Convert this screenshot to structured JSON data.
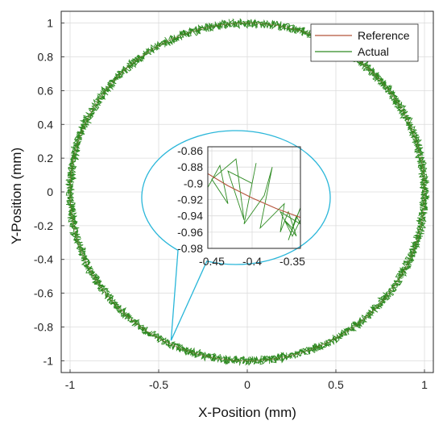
{
  "chart_data": [
    {
      "type": "line",
      "xlabel": "X-Position (mm)",
      "ylabel": "Y-Position (mm)",
      "xlim": [
        -1.05,
        1.05
      ],
      "ylim": [
        -1.07,
        1.07
      ],
      "xticks": [
        -1,
        -0.5,
        0,
        0.5,
        1
      ],
      "xtick_labels": [
        "-1",
        "-0.5",
        "0",
        "0.5",
        "1"
      ],
      "yticks": [
        1,
        0.8,
        0.6,
        0.4,
        0.2,
        0,
        -0.2,
        -0.4,
        -0.6,
        -0.8,
        -1
      ],
      "ytick_labels": [
        "1",
        "0.8",
        "0.6",
        "0.4",
        "0.2",
        "0",
        "-0.2",
        "-0.4",
        "-0.6",
        "-0.8",
        "-1"
      ],
      "grid": true,
      "legend_position": "top-right",
      "series": [
        {
          "name": "Reference",
          "color": "#b5533a",
          "shape": "circle",
          "center": [
            0,
            0
          ],
          "radius": 1.0
        },
        {
          "name": "Actual",
          "color": "#2e8b22",
          "shape": "circle with noise",
          "center": [
            0,
            0
          ],
          "radius": 1.0,
          "noise_amplitude": 0.02
        }
      ]
    },
    {
      "type": "line",
      "role": "inset",
      "xlim": [
        -0.455,
        -0.34
      ],
      "ylim": [
        -0.98,
        -0.855
      ],
      "xticks": [
        -0.45,
        -0.4,
        -0.35
      ],
      "xtick_labels": [
        "-0.45",
        "-0.4",
        "-0.35"
      ],
      "yticks": [
        -0.86,
        -0.88,
        -0.9,
        -0.92,
        -0.94,
        -0.96,
        -0.98
      ],
      "ytick_labels": [
        "-0.86",
        "-0.88",
        "-0.9",
        "-0.92",
        "-0.94",
        "-0.96",
        "-0.98"
      ],
      "grid": true,
      "callout_point": [
        -0.43,
        -0.88
      ],
      "series": [
        {
          "name": "Reference",
          "color": "#b5533a",
          "x": [
            -0.455,
            -0.43,
            -0.4,
            -0.37,
            -0.34
          ],
          "y": [
            -0.888,
            -0.903,
            -0.918,
            -0.931,
            -0.942
          ]
        },
        {
          "name": "Actual",
          "color": "#2e8b22",
          "x": [
            -0.455,
            -0.44,
            -0.43,
            -0.45,
            -0.42,
            -0.41,
            -0.43,
            -0.4,
            -0.395,
            -0.41,
            -0.385,
            -0.375,
            -0.39,
            -0.36,
            -0.365,
            -0.355,
            -0.345,
            -0.36,
            -0.35,
            -0.34,
            -0.355,
            -0.345,
            -0.34,
            -0.365,
            -0.35,
            -0.34
          ],
          "y": [
            -0.905,
            -0.878,
            -0.925,
            -0.895,
            -0.87,
            -0.945,
            -0.885,
            -0.9,
            -0.875,
            -0.95,
            -0.915,
            -0.88,
            -0.955,
            -0.925,
            -0.96,
            -0.935,
            -0.965,
            -0.945,
            -0.955,
            -0.93,
            -0.97,
            -0.94,
            -0.95,
            -0.935,
            -0.965,
            -0.945
          ]
        }
      ]
    }
  ]
}
